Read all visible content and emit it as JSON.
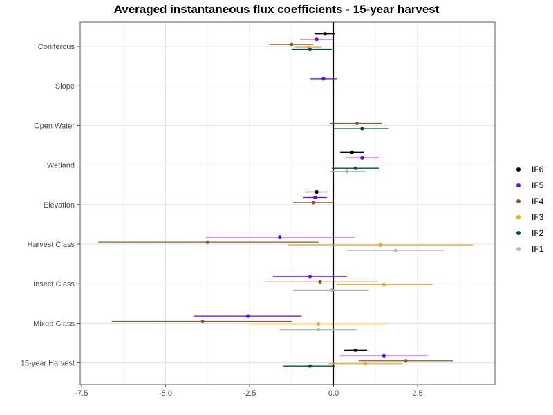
{
  "chart_data": {
    "type": "scatter",
    "title": "Averaged instantaneous flux coefficients - 15-year harvest",
    "xlabel": "",
    "ylabel": "",
    "xlim": [
      -7.5,
      4.6
    ],
    "x_ticks": [
      "-7.5",
      "-5.0",
      "-2.5",
      "0.0",
      "2.5"
    ],
    "x_tick_values": [
      -7.5,
      -5.0,
      -2.5,
      0.0,
      2.5
    ],
    "categories": [
      "Coniferous",
      "Slope",
      "Open Water",
      "Wetland",
      "Elevation",
      "Harvest Class",
      "Insect Class",
      "Mixed Class",
      "15-year Harvest"
    ],
    "legend_position": "right",
    "grid": true,
    "series": [
      {
        "name": "IF6",
        "color": "#000000",
        "offset": -0.32,
        "points": [
          {
            "category": "Coniferous",
            "est": -0.25,
            "lo": -0.55,
            "hi": 0.05
          },
          {
            "category": "Wetland",
            "est": 0.55,
            "lo": 0.2,
            "hi": 0.9
          },
          {
            "category": "Elevation",
            "est": -0.5,
            "lo": -0.85,
            "hi": -0.15
          },
          {
            "category": "15-year Harvest",
            "est": 0.65,
            "lo": 0.3,
            "hi": 1.0
          }
        ]
      },
      {
        "name": "IF5",
        "color": "#6a00ff",
        "offset": -0.18,
        "points": [
          {
            "category": "Coniferous",
            "est": -0.5,
            "lo": -1.0,
            "hi": 0.0
          },
          {
            "category": "Slope",
            "est": -0.3,
            "lo": -0.7,
            "hi": 0.1
          },
          {
            "category": "Wetland",
            "est": 0.85,
            "lo": 0.35,
            "hi": 1.35
          },
          {
            "category": "Elevation",
            "est": -0.55,
            "lo": -0.9,
            "hi": -0.2
          },
          {
            "category": "Harvest Class",
            "est": -1.6,
            "lo": -3.8,
            "hi": 0.65
          },
          {
            "category": "Insect Class",
            "est": -0.7,
            "lo": -1.8,
            "hi": 0.4
          },
          {
            "category": "Mixed Class",
            "est": -2.55,
            "lo": -4.15,
            "hi": -0.95
          },
          {
            "category": "15-year Harvest",
            "est": 1.5,
            "lo": 0.2,
            "hi": 2.8
          }
        ]
      },
      {
        "name": "IF4",
        "color": "#8b5a2b",
        "offset": -0.05,
        "points": [
          {
            "category": "Coniferous",
            "est": -1.25,
            "lo": -1.9,
            "hi": -0.6
          },
          {
            "category": "Open Water",
            "est": 0.7,
            "lo": -0.1,
            "hi": 1.45
          },
          {
            "category": "Elevation",
            "est": -0.6,
            "lo": -1.2,
            "hi": 0.0
          },
          {
            "category": "Harvest Class",
            "est": -3.75,
            "lo": -7.0,
            "hi": -0.45
          },
          {
            "category": "Insect Class",
            "est": -0.4,
            "lo": -2.05,
            "hi": 1.3
          },
          {
            "category": "Mixed Class",
            "est": -3.9,
            "lo": -6.6,
            "hi": -1.25
          },
          {
            "category": "15-year Harvest",
            "est": 2.15,
            "lo": 0.75,
            "hi": 3.55
          }
        ]
      },
      {
        "name": "IF3",
        "color": "#f5a623",
        "offset": 0.02,
        "points": [
          {
            "category": "Coniferous",
            "est": -0.75,
            "lo": -1.15,
            "hi": -0.35
          },
          {
            "category": "Harvest Class",
            "est": 1.4,
            "lo": -1.35,
            "hi": 4.15
          },
          {
            "category": "Insect Class",
            "est": 1.5,
            "lo": 0.1,
            "hi": 2.95
          },
          {
            "category": "Mixed Class",
            "est": -0.45,
            "lo": -2.45,
            "hi": 1.6
          },
          {
            "category": "15-year Harvest",
            "est": 0.95,
            "lo": -0.15,
            "hi": 2.05
          }
        ]
      },
      {
        "name": "IF2",
        "color": "#004d4d",
        "offset": 0.08,
        "points": [
          {
            "category": "Coniferous",
            "est": -0.7,
            "lo": -1.25,
            "hi": -0.05
          },
          {
            "category": "Open Water",
            "est": 0.85,
            "lo": 0.0,
            "hi": 1.65
          },
          {
            "category": "Wetland",
            "est": 0.65,
            "lo": -0.05,
            "hi": 1.35
          },
          {
            "category": "15-year Harvest",
            "est": -0.7,
            "lo": -1.5,
            "hi": 0.05
          }
        ]
      },
      {
        "name": "IF1",
        "color": "#b3b3b3",
        "offset": 0.16,
        "points": [
          {
            "category": "Wetland",
            "est": 0.4,
            "lo": -0.1,
            "hi": 0.95
          },
          {
            "category": "Harvest Class",
            "est": 1.85,
            "lo": 0.4,
            "hi": 3.3
          },
          {
            "category": "Insect Class",
            "est": -0.05,
            "lo": -1.2,
            "hi": 1.05
          },
          {
            "category": "Mixed Class",
            "est": -0.45,
            "lo": -1.6,
            "hi": 0.7
          }
        ]
      }
    ],
    "legend_order": [
      "IF6",
      "IF5",
      "IF4",
      "IF3",
      "IF2",
      "IF1"
    ]
  }
}
